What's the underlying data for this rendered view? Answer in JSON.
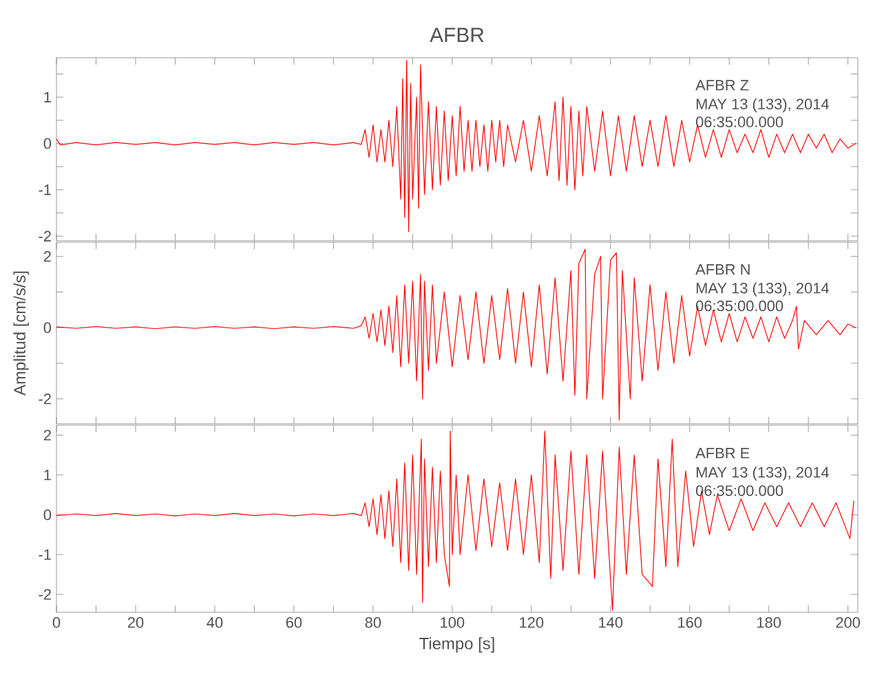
{
  "chart_data": [
    {
      "type": "line",
      "title": "AFBR",
      "color": "#ff0000",
      "tick_labels": "y",
      "xlim": [
        0,
        202.5
      ],
      "xticks": [
        0,
        {
          "value": 10,
          "label": null
        },
        20,
        {
          "value": 30,
          "label": null
        },
        40,
        {
          "value": 50,
          "label": null
        },
        60,
        {
          "value": 70,
          "label": null
        },
        80,
        {
          "value": 90,
          "label": null
        },
        100,
        {
          "value": 110,
          "label": null
        },
        120,
        {
          "value": 130,
          "label": null
        },
        140,
        {
          "value": 150,
          "label": null
        },
        160,
        {
          "value": 170,
          "label": null
        },
        180,
        {
          "value": 190,
          "label": null
        },
        200
      ],
      "ylim": [
        -2.1,
        1.85
      ],
      "yticks": [
        -2,
        {
          "value": -1.5,
          "label": null
        },
        -1,
        {
          "value": -0.5,
          "label": null
        },
        0,
        {
          "value": 0.5,
          "label": null
        },
        1,
        {
          "value": 1.5,
          "label": null
        }
      ],
      "annotations": [
        "AFBR   Z",
        "MAY 13 (133), 2014",
        "06:35:00.000"
      ],
      "x": [
        0,
        1,
        5,
        10,
        15,
        20,
        25,
        30,
        35,
        40,
        45,
        50,
        55,
        60,
        65,
        70,
        75,
        77,
        78,
        79,
        80,
        81,
        82,
        83,
        84,
        85,
        86,
        87,
        87.5,
        88,
        88.5,
        89,
        89.5,
        90,
        91,
        91.5,
        92,
        93,
        94,
        95,
        96,
        97,
        98,
        99,
        100,
        101,
        102,
        103,
        104,
        105,
        106,
        107,
        108,
        109,
        110,
        111,
        112,
        113,
        114,
        116,
        118,
        120,
        122,
        124,
        126,
        127,
        128,
        129,
        130,
        131,
        132,
        133,
        134,
        136,
        138,
        140,
        142,
        144,
        146,
        148,
        150,
        152,
        154,
        156,
        158,
        160,
        162,
        164,
        166,
        168,
        170,
        172,
        174,
        176,
        178,
        180,
        182,
        184,
        186,
        188,
        190,
        192,
        194,
        196,
        198,
        200,
        202
      ],
      "values": [
        0.1,
        -0.03,
        0.02,
        -0.03,
        0.02,
        -0.02,
        0.02,
        -0.03,
        0.02,
        -0.02,
        0.02,
        -0.03,
        0.02,
        -0.02,
        0.02,
        -0.03,
        0.02,
        -0.02,
        0.3,
        -0.3,
        0.4,
        -0.4,
        0.3,
        -0.4,
        0.5,
        -0.5,
        0.8,
        -1.2,
        1.4,
        -1.6,
        1.8,
        -1.9,
        1.3,
        -1.2,
        1.0,
        -1.4,
        1.7,
        -1.1,
        0.9,
        -1.0,
        0.8,
        -0.9,
        0.7,
        -0.8,
        0.6,
        -0.7,
        0.8,
        -0.6,
        0.5,
        -0.6,
        0.5,
        -0.5,
        0.4,
        -0.6,
        0.5,
        -0.4,
        0.5,
        -0.5,
        0.4,
        -0.4,
        0.5,
        -0.6,
        0.6,
        -0.7,
        0.9,
        -0.8,
        1.0,
        -0.9,
        0.8,
        -1.0,
        0.7,
        -0.7,
        0.8,
        -0.6,
        0.7,
        -0.7,
        0.6,
        -0.6,
        0.6,
        -0.5,
        0.5,
        -0.5,
        0.6,
        -0.5,
        0.5,
        -0.4,
        0.4,
        -0.3,
        0.3,
        -0.3,
        0.3,
        -0.2,
        0.2,
        -0.2,
        0.3,
        -0.3,
        0.2,
        -0.2,
        0.2,
        -0.2,
        0.2,
        -0.1,
        0.2,
        -0.2,
        0.1,
        -0.1,
        0.0
      ]
    },
    {
      "type": "line",
      "ylabel": "Amplitud [cm/s/s]",
      "color": "#ff0000",
      "tick_labels": "y",
      "xlim": [
        0,
        202.5
      ],
      "xticks": [
        0,
        {
          "value": 10,
          "label": null
        },
        20,
        {
          "value": 30,
          "label": null
        },
        40,
        {
          "value": 50,
          "label": null
        },
        60,
        {
          "value": 70,
          "label": null
        },
        80,
        {
          "value": 90,
          "label": null
        },
        100,
        {
          "value": 110,
          "label": null
        },
        120,
        {
          "value": 130,
          "label": null
        },
        140,
        {
          "value": 150,
          "label": null
        },
        160,
        {
          "value": 170,
          "label": null
        },
        180,
        {
          "value": 190,
          "label": null
        },
        200
      ],
      "ylim": [
        -2.7,
        2.4
      ],
      "yticks": [
        -2,
        {
          "value": -1,
          "label": null
        },
        0,
        {
          "value": 1,
          "label": null
        },
        2
      ],
      "annotations": [
        "AFBR   N",
        "MAY 13 (133), 2014",
        "06:35:00.000"
      ],
      "x": [
        0,
        5,
        10,
        15,
        20,
        25,
        30,
        35,
        40,
        45,
        50,
        55,
        60,
        65,
        70,
        75,
        77,
        78,
        79,
        80,
        81,
        82,
        83,
        84,
        85,
        86,
        87,
        88,
        89,
        90,
        91,
        92,
        92.5,
        93,
        94,
        95,
        96,
        98,
        100,
        102,
        104,
        106,
        108,
        110,
        112,
        114,
        116,
        118,
        120,
        122,
        124,
        126,
        128,
        130,
        131,
        132,
        133.6,
        134,
        136,
        137.5,
        138,
        140,
        141.5,
        142.2,
        143,
        145,
        146,
        148,
        150,
        152,
        154,
        156,
        158,
        160,
        162,
        164,
        166,
        168,
        170,
        172,
        174,
        176,
        178,
        180,
        182,
        184,
        186,
        187,
        187.5,
        189,
        192,
        195,
        198,
        200,
        202
      ],
      "values": [
        0.02,
        -0.02,
        0.03,
        -0.02,
        0.02,
        -0.03,
        0.02,
        -0.02,
        0.03,
        -0.02,
        0.02,
        -0.03,
        0.02,
        -0.02,
        0.03,
        -0.02,
        0.05,
        0.3,
        -0.3,
        0.4,
        -0.4,
        0.5,
        -0.5,
        0.6,
        -0.7,
        0.9,
        -1.1,
        1.2,
        -1.0,
        1.3,
        -1.5,
        1.5,
        -2.0,
        1.3,
        -1.2,
        1.2,
        -1.0,
        1.0,
        -1.1,
        0.9,
        -0.9,
        1.0,
        -1.0,
        0.9,
        -0.9,
        1.1,
        -1.0,
        1.0,
        -1.1,
        1.2,
        -1.3,
        1.4,
        -1.5,
        1.6,
        -1.9,
        1.8,
        2.2,
        -2.0,
        1.5,
        2.0,
        -2.0,
        1.9,
        2.1,
        -2.6,
        1.6,
        -2.0,
        1.4,
        -1.5,
        1.2,
        -1.2,
        1.0,
        -1.0,
        0.9,
        -0.8,
        0.6,
        -0.5,
        0.5,
        -0.4,
        0.4,
        -0.4,
        0.3,
        -0.3,
        0.3,
        -0.4,
        0.3,
        -0.3,
        0.2,
        0.6,
        -0.6,
        0.2,
        -0.2,
        0.2,
        -0.2,
        0.1,
        0.0
      ]
    },
    {
      "type": "line",
      "xlabel": "Tiempo [s]",
      "color": "#ff0000",
      "xlim": [
        0,
        202.5
      ],
      "xticks": [
        0,
        {
          "value": 10,
          "label": null
        },
        20,
        {
          "value": 30,
          "label": null
        },
        40,
        {
          "value": 50,
          "label": null
        },
        60,
        {
          "value": 70,
          "label": null
        },
        80,
        {
          "value": 90,
          "label": null
        },
        100,
        {
          "value": 110,
          "label": null
        },
        120,
        {
          "value": 130,
          "label": null
        },
        140,
        {
          "value": 150,
          "label": null
        },
        160,
        {
          "value": 170,
          "label": null
        },
        180,
        {
          "value": 190,
          "label": null
        },
        200
      ],
      "ylim": [
        -2.45,
        2.25
      ],
      "yticks": [
        -2,
        -1,
        0,
        1,
        2
      ],
      "annotations": [
        "AFBR   E",
        "MAY 13 (133), 2014",
        "06:35:00.000"
      ],
      "x": [
        0,
        5,
        10,
        15,
        20,
        25,
        30,
        35,
        40,
        45,
        50,
        55,
        60,
        65,
        70,
        75,
        77,
        78,
        79,
        80,
        81,
        82,
        83,
        84,
        85,
        86,
        87,
        88,
        89,
        90,
        91,
        92.2,
        92.5,
        93,
        94,
        95,
        96,
        97,
        98,
        99.3,
        99.5,
        100,
        101,
        102,
        104,
        106,
        108,
        110,
        112,
        114,
        116,
        118,
        120,
        122,
        123.4,
        124.9,
        126,
        128,
        130,
        132,
        134,
        136,
        138,
        140.5,
        142.2,
        144,
        146,
        148,
        150.6,
        152,
        154,
        155.6,
        157,
        159,
        161,
        163,
        165,
        167,
        170,
        173,
        176,
        179,
        182,
        185,
        188,
        191,
        194,
        197,
        200.5,
        201.5
      ],
      "values": [
        -0.02,
        0.02,
        -0.02,
        0.03,
        -0.02,
        0.02,
        -0.03,
        0.02,
        -0.02,
        0.03,
        -0.02,
        0.02,
        -0.03,
        0.02,
        -0.02,
        0.03,
        -0.02,
        0.3,
        -0.3,
        0.4,
        -0.5,
        0.5,
        -0.6,
        0.6,
        -0.8,
        0.9,
        -1.2,
        1.3,
        -1.4,
        1.5,
        -1.5,
        1.9,
        -2.2,
        1.4,
        -1.3,
        1.2,
        -1.2,
        1.1,
        -1.0,
        -1.8,
        2.1,
        -1.0,
        1.0,
        -1.0,
        1.0,
        -0.9,
        0.9,
        -0.8,
        0.8,
        -0.9,
        0.9,
        -1.0,
        1.0,
        -1.2,
        2.1,
        -1.6,
        1.5,
        -1.4,
        1.6,
        -1.5,
        1.5,
        -1.6,
        1.6,
        -2.4,
        1.7,
        -1.5,
        1.5,
        -1.5,
        -1.8,
        1.4,
        -1.3,
        1.9,
        -1.3,
        1.1,
        -0.8,
        0.6,
        -0.5,
        0.5,
        -0.4,
        0.4,
        -0.4,
        0.3,
        -0.3,
        0.3,
        -0.3,
        0.3,
        -0.3,
        0.3,
        -0.6,
        0.35
      ]
    }
  ]
}
